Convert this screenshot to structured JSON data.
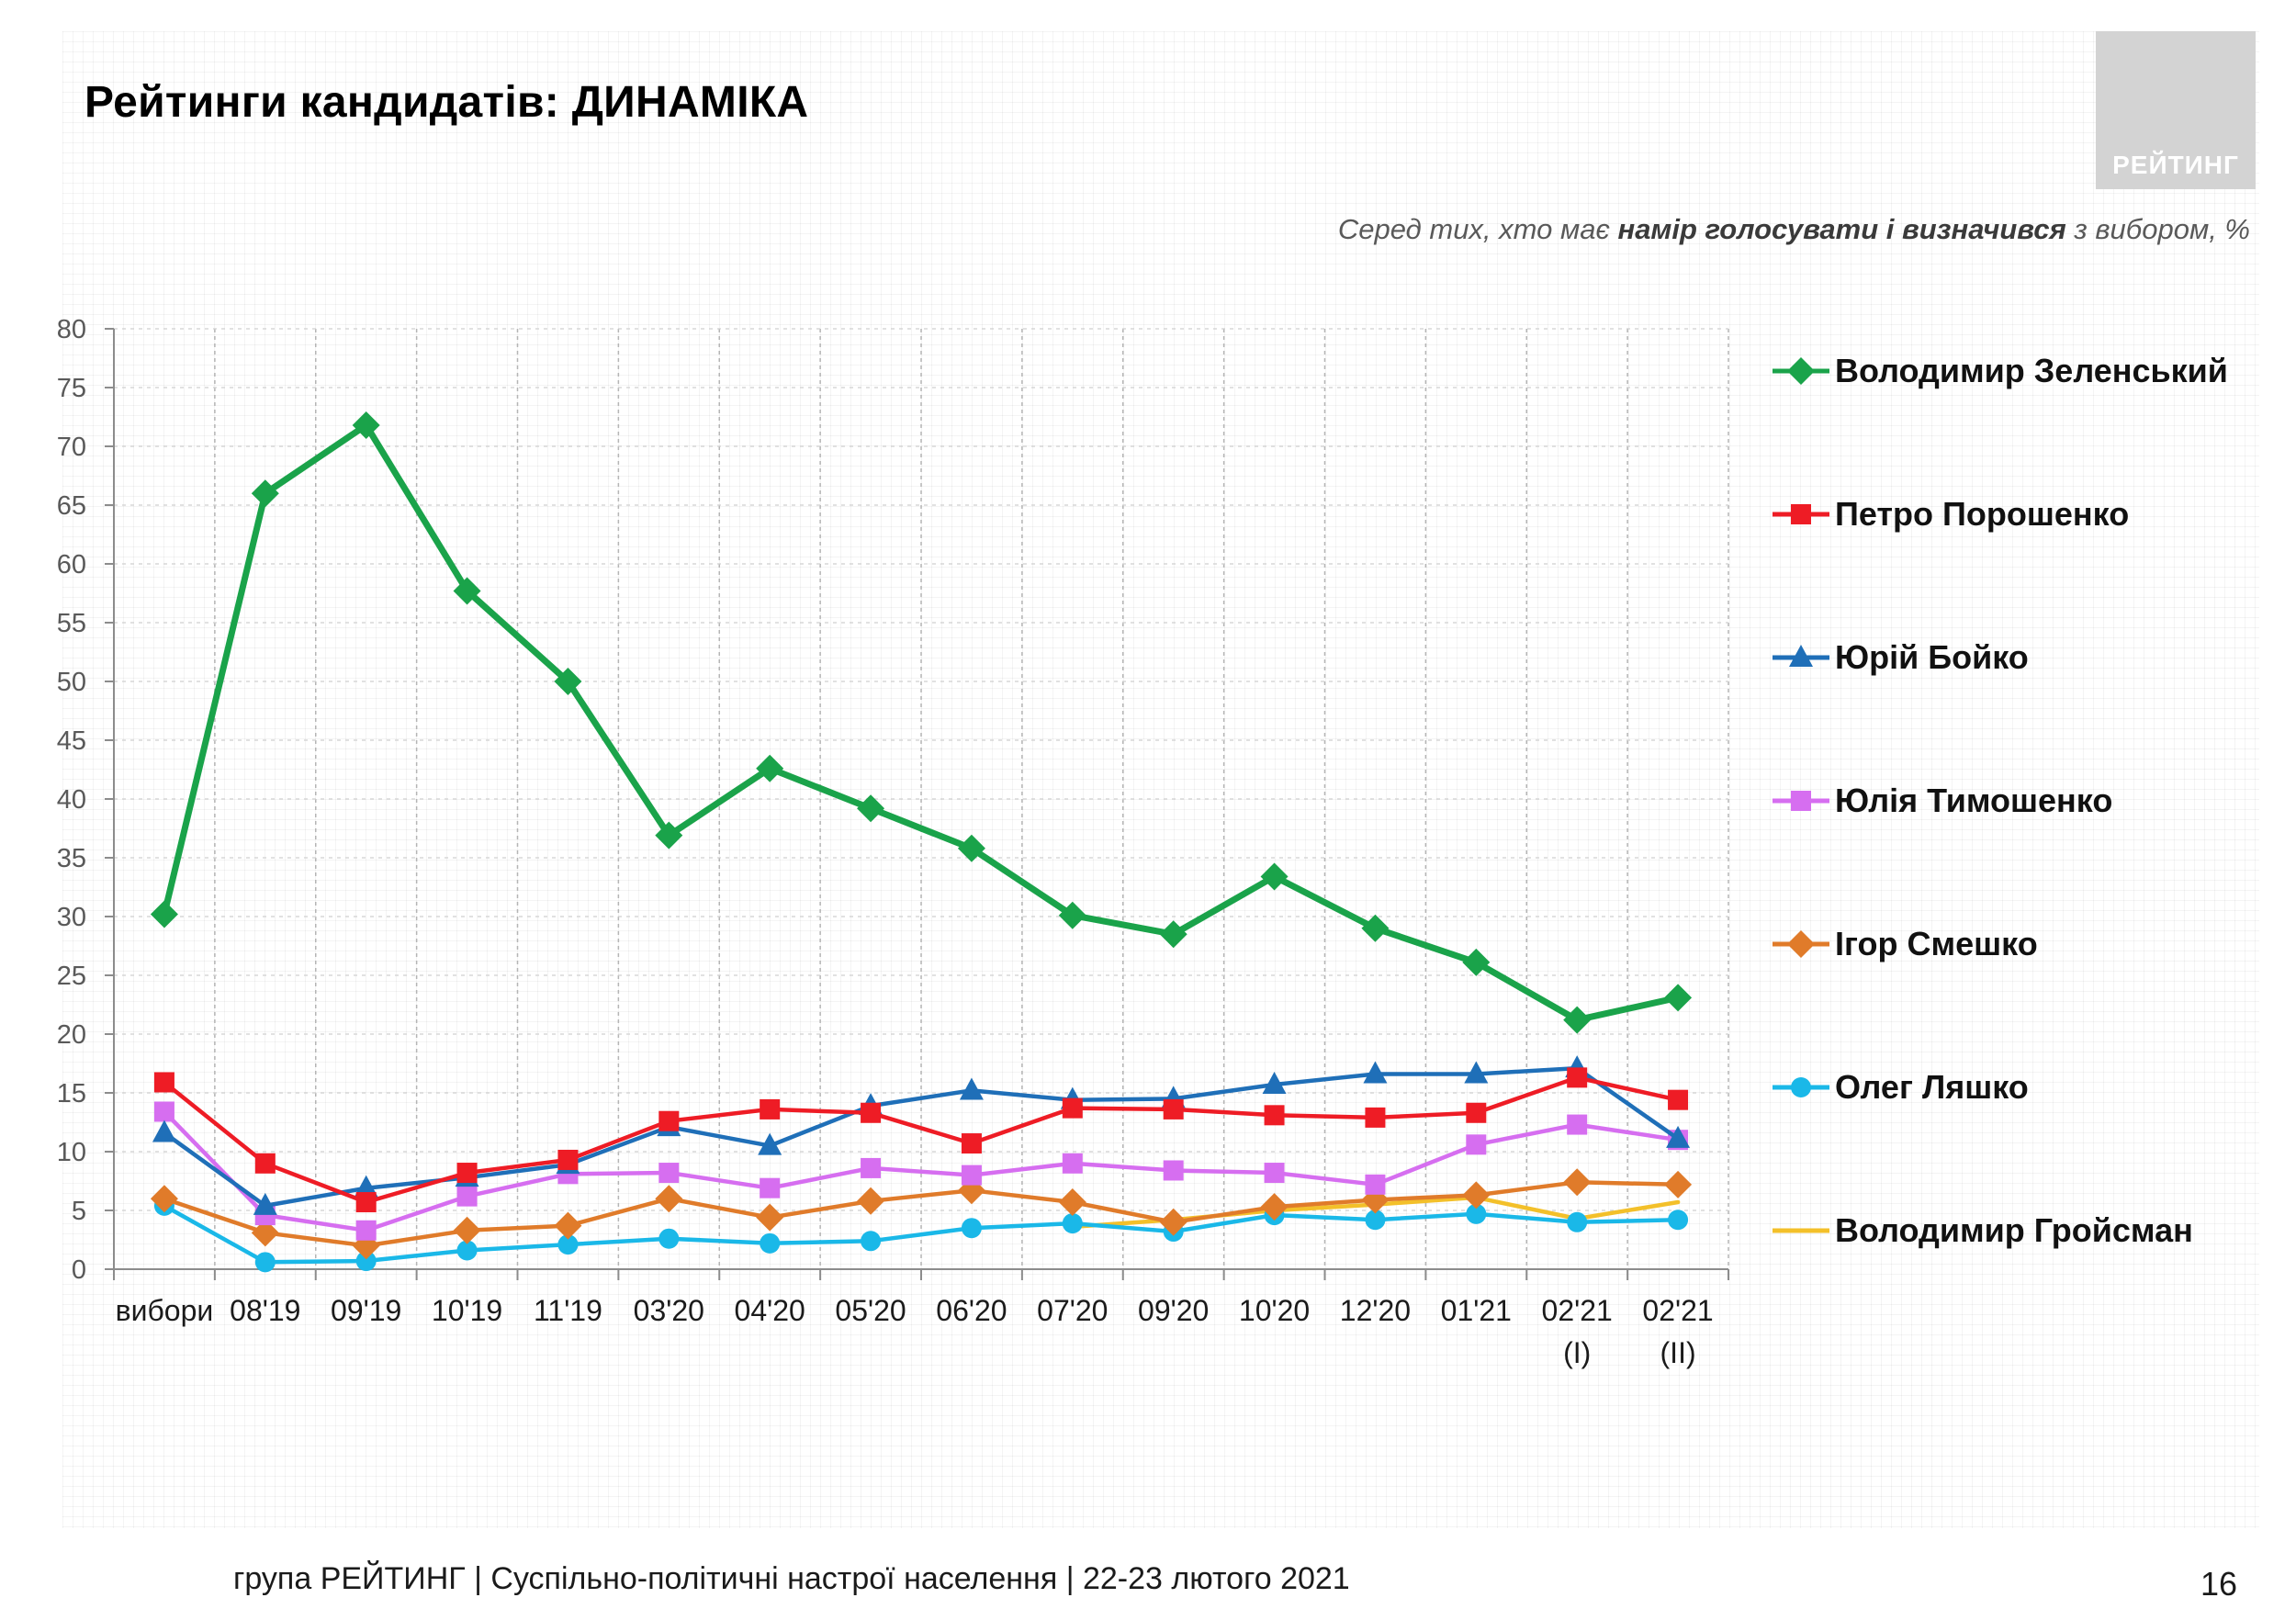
{
  "title": "Рейтинги кандидатів: ДИНАМІКА",
  "logo_text": "РЕЙТИНГ",
  "subtitle": {
    "prefix": "Серед тих, хто має ",
    "bold": "намір голосувати і визначився",
    "suffix": " з вибором, %"
  },
  "footer": "група РЕЙТИНГ | Суспільно-політичні настрої населення  | 22-23 лютого 2021",
  "page_number": "16",
  "chart_data": {
    "type": "line",
    "title": "",
    "xlabel": "",
    "ylabel": "",
    "ylim": [
      0,
      80
    ],
    "yticks": [
      0,
      5,
      10,
      15,
      20,
      25,
      30,
      35,
      40,
      45,
      50,
      55,
      60,
      65,
      70,
      75,
      80
    ],
    "grid": "vertical dashed lines",
    "legend_position": "right",
    "categories": [
      [
        "вибори"
      ],
      [
        "08'19"
      ],
      [
        "09'19"
      ],
      [
        "10'19"
      ],
      [
        "11'19"
      ],
      [
        "03'20"
      ],
      [
        "04'20"
      ],
      [
        "05'20"
      ],
      [
        "06'20"
      ],
      [
        "07'20"
      ],
      [
        "09'20"
      ],
      [
        "10'20"
      ],
      [
        "12'20"
      ],
      [
        "01'21"
      ],
      [
        "02'21",
        "(I)"
      ],
      [
        "02'21",
        "(II)"
      ]
    ],
    "series": [
      {
        "name": "Володимир Зеленський",
        "color": "#1aa34a",
        "marker": "diamond",
        "values": [
          30.2,
          66,
          71.8,
          57.7,
          50,
          36.9,
          42.6,
          39.2,
          35.8,
          30.1,
          28.5,
          33.4,
          29,
          26.1,
          21.2,
          23.1
        ]
      },
      {
        "name": "Петро Порошенко",
        "color": "#ee1c25",
        "marker": "square",
        "values": [
          15.9,
          9,
          5.7,
          8.2,
          9.3,
          12.6,
          13.6,
          13.3,
          10.7,
          13.7,
          13.6,
          13.1,
          12.9,
          13.3,
          16.3,
          14.4
        ]
      },
      {
        "name": "Юрій Бойко",
        "color": "#1f6fb8",
        "marker": "triangle",
        "values": [
          11.6,
          5.4,
          6.9,
          7.8,
          8.9,
          12.1,
          10.5,
          13.9,
          15.2,
          14.4,
          14.5,
          15.7,
          16.6,
          16.6,
          17.1,
          11.1
        ]
      },
      {
        "name": "Юлія Тимошенко",
        "color": "#d66ef0",
        "marker": "square",
        "values": [
          13.4,
          4.6,
          3.3,
          6.2,
          8.1,
          8.2,
          6.9,
          8.6,
          8,
          9,
          8.4,
          8.2,
          7.2,
          10.6,
          12.3,
          11
        ]
      },
      {
        "name": "Ігор Смешко",
        "color": "#e07b2a",
        "marker": "diamond",
        "values": [
          6,
          3.1,
          2,
          3.3,
          3.7,
          6,
          4.4,
          5.8,
          6.7,
          5.7,
          4,
          5.3,
          5.9,
          6.3,
          7.4,
          7.2
        ]
      },
      {
        "name": "Олег Ляшко",
        "color": "#1ab8e8",
        "marker": "circle",
        "values": [
          5.4,
          0.6,
          0.7,
          1.6,
          2.1,
          2.6,
          2.2,
          2.4,
          3.5,
          3.9,
          3.2,
          4.6,
          4.2,
          4.7,
          4,
          4.2
        ]
      },
      {
        "name": "Володимир Гройсман",
        "color": "#f3c02a",
        "marker": "none",
        "values": [
          null,
          null,
          null,
          null,
          null,
          null,
          null,
          null,
          null,
          3.6,
          4.2,
          5,
          5.5,
          6.1,
          4.3,
          5.7
        ]
      }
    ]
  }
}
